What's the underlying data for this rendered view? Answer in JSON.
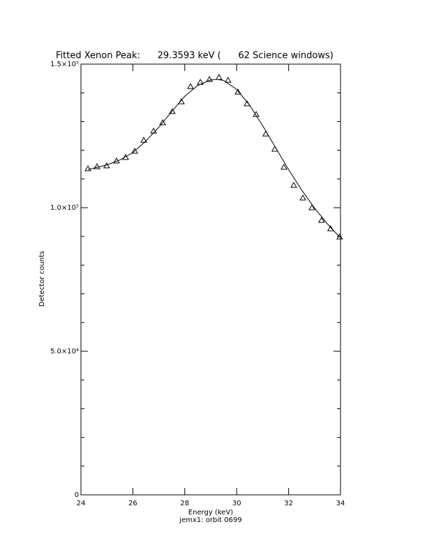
{
  "chart_data": {
    "type": "scatter",
    "title": "Fitted Xenon Peak:      29.3593 keV (      62 Science windows)",
    "xlabel": "Energy (keV)",
    "subtitle": "jemx1: orbit 0699",
    "ylabel": "Detector counts",
    "xlim": [
      24,
      34
    ],
    "ylim": [
      0,
      150000
    ],
    "xticks": [
      24,
      26,
      28,
      30,
      32,
      34
    ],
    "yticks": [
      0,
      {
        "value": 50000,
        "label": "5.0×10⁴"
      },
      {
        "value": 100000,
        "label": "1.0×10⁵"
      },
      {
        "value": 150000,
        "label": "1.5×10⁵"
      }
    ],
    "yminorticks": [
      10000,
      20000,
      30000,
      40000,
      60000,
      70000,
      80000,
      90000,
      110000,
      120000,
      130000,
      140000
    ],
    "series": [
      {
        "type": "scatter",
        "color": "#000000",
        "x": [
          24.27,
          24.62,
          24.99,
          25.37,
          25.72,
          26.07,
          26.42,
          26.8,
          27.15,
          27.52,
          27.87,
          28.22,
          28.6,
          28.95,
          29.32,
          29.67,
          30.05,
          30.4,
          30.75,
          31.12,
          31.47,
          31.82,
          32.2,
          32.55,
          32.9,
          33.27,
          33.62,
          33.97
        ],
        "values": [
          113600,
          114300,
          114600,
          116300,
          117500,
          119700,
          123500,
          126700,
          129600,
          133500,
          136900,
          142200,
          143700,
          144700,
          145400,
          144400,
          140300,
          136200,
          132500,
          125700,
          120400,
          114100,
          107800,
          103400,
          100000,
          95600,
          92700,
          89800
        ]
      },
      {
        "type": "line",
        "color": "#000000",
        "x": [
          24.27,
          24.5,
          25,
          25.5,
          26,
          26.5,
          27,
          27.5,
          28,
          28.5,
          29,
          29.25,
          29.5,
          30,
          30.5,
          31,
          31.5,
          32,
          32.5,
          33,
          33.5,
          34
        ],
        "values": [
          113300,
          113800,
          114900,
          116600,
          119200,
          123200,
          128000,
          133500,
          138800,
          142600,
          144500,
          144700,
          144300,
          141200,
          135700,
          128600,
          120900,
          113300,
          106200,
          99900,
          94300,
          89500
        ]
      }
    ]
  }
}
